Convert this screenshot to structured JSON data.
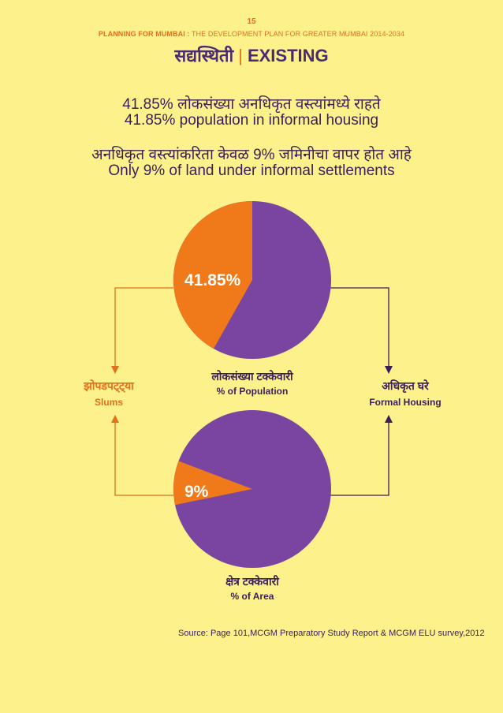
{
  "page_number": "15",
  "doc_header": {
    "bold": "PLANNING FOR MUMBAI :",
    "rest": " THE DEVELOPMENT PLAN FOR GREATER MUMBAI 2014-2034"
  },
  "section_title": {
    "marathi": "सद्यस्थिती",
    "separator": "|",
    "english": "EXISTING"
  },
  "statements": {
    "stat1_marathi": "41.85% लोकसंख्या अनधिकृत वस्त्यांमध्ये राहते",
    "stat1_english": "41.85% population in informal housing",
    "stat2_marathi": "अनधिकृत वस्त्यांकरिता केवळ 9%  जमिनीचा वापर होत आहे",
    "stat2_english": "Only 9% of land under informal settlements"
  },
  "legend": {
    "slums_marathi": "झोपडपट्ट्या",
    "slums_english": "Slums",
    "formal_marathi": "अधिकृत घरे",
    "formal_english": "Formal Housing"
  },
  "colors": {
    "slums": "#F07A1A",
    "formal": "#7A45A0",
    "arrow_slums": "#E2701C",
    "arrow_formal": "#3B1D5A",
    "background": "#FDF18B"
  },
  "chart_data": [
    {
      "type": "pie",
      "title_marathi": "लोकसंख्या टक्केवारी",
      "title_english": "% of Population",
      "categories": [
        "Slums",
        "Formal Housing"
      ],
      "values": [
        41.85,
        58.15
      ],
      "data_labels": [
        "41.85%",
        ""
      ]
    },
    {
      "type": "pie",
      "title_marathi": "क्षेत्र टक्केवारी",
      "title_english": "% of Area",
      "categories": [
        "Slums",
        "Formal Housing"
      ],
      "values": [
        9,
        91
      ],
      "data_labels": [
        "9%",
        ""
      ]
    }
  ],
  "source": "Source: Page 101,MCGM Preparatory Study Report & MCGM ELU survey,2012"
}
